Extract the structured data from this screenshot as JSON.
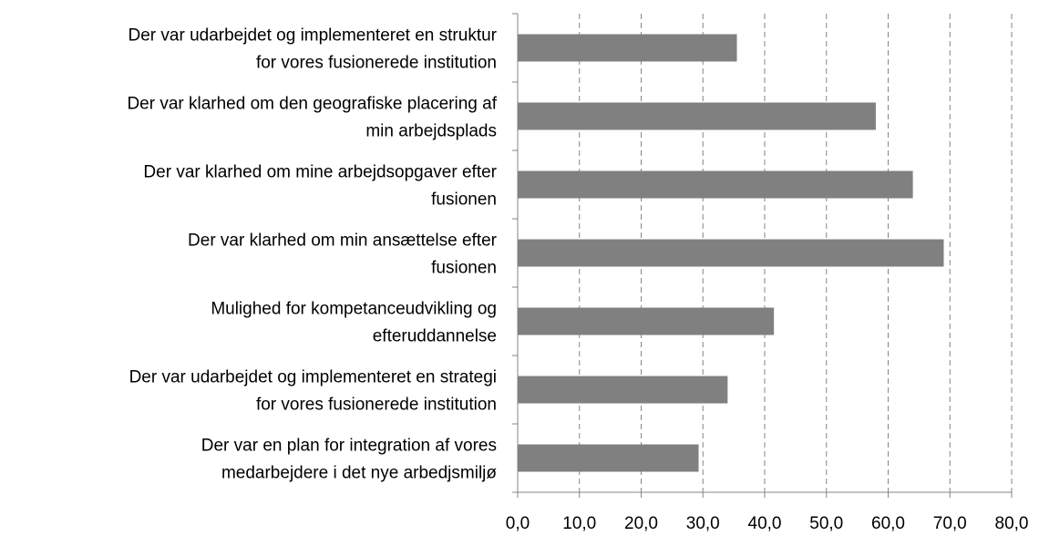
{
  "chart_data": {
    "type": "hbar",
    "categories": [
      "Der var udarbejdet og implementeret en struktur\nfor vores fusionerede institution",
      "Der var klarhed om den geografiske placering af\nmin arbejdsplads",
      "Der var klarhed om mine arbejdsopgaver efter\nfusionen",
      "Der var klarhed om min ansættelse efter\nfusionen",
      "Mulighed for kompetanceudvikling og\nefteruddannelse",
      "Der var udarbejdet og implementeret en strategi\nfor vores fusionerede institution",
      "Der var en plan for integration af vores\nmedarbejdere i det  nye arbedjsmiljø"
    ],
    "values": [
      35.5,
      58,
      64,
      69,
      41.5,
      34,
      29.3
    ],
    "color": "#808080",
    "xlim": [
      0,
      80
    ],
    "xticks": [
      {
        "value": 0,
        "label": "0,0"
      },
      {
        "value": 10,
        "label": "10,0"
      },
      {
        "value": 20,
        "label": "20,0"
      },
      {
        "value": 30,
        "label": "30,0"
      },
      {
        "value": 40,
        "label": "40,0"
      },
      {
        "value": 50,
        "label": "50,0"
      },
      {
        "value": 60,
        "label": "60,0"
      },
      {
        "value": 70,
        "label": "70,0"
      },
      {
        "value": 80,
        "label": "80,0"
      }
    ],
    "grid": true
  }
}
